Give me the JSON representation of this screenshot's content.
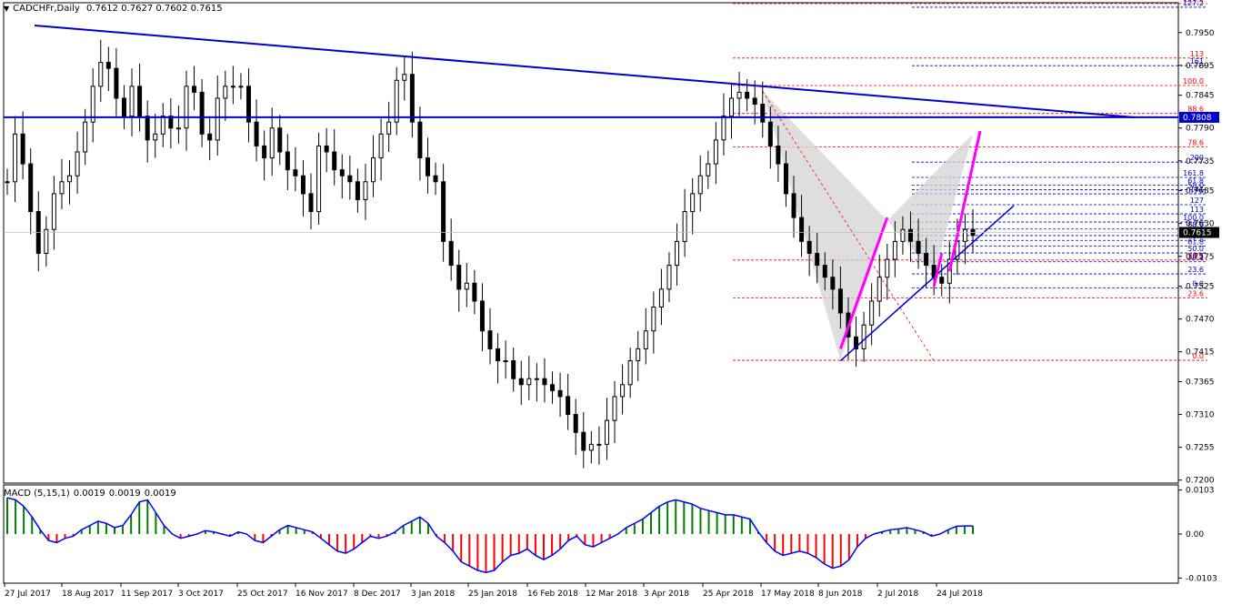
{
  "header": {
    "menu_glyph": "▼",
    "symbol": "CADCHFr,Daily",
    "open": "0.7612",
    "high": "0.7627",
    "low": "0.7602",
    "close": "0.7615"
  },
  "macd_header": {
    "label": "MACD (5,15,1)",
    "v1": "0.0019",
    "v2": "0.0019",
    "v3": "0.0019"
  },
  "colors": {
    "background": "#ffffff",
    "candle": "#000000",
    "trendline": "#0000cd",
    "pattern_line": "#ff00ff",
    "fib_red": "#ff0000",
    "fib_blue": "#0000cd",
    "macd_green": "#008000",
    "macd_red": "#ff0000",
    "macd_signal": "#0000ff",
    "current_price_tag": "#000000"
  },
  "chart_data": {
    "type": "candlestick",
    "symbol": "CADCHFr",
    "timeframe": "Daily",
    "ylim": [
      0.7195,
      0.8
    ],
    "price_ticks": [
      "0.7950",
      "0.7895",
      "0.7845",
      "0.7790",
      "0.7735",
      "0.7685",
      "0.7630",
      "0.7575",
      "0.7525",
      "0.7470",
      "0.7415",
      "0.7365",
      "0.7310",
      "0.7255",
      "0.7200"
    ],
    "x_ticks": [
      "27 Jul 2017",
      "18 Aug 2017",
      "11 Sep 2017",
      "3 Oct 2017",
      "25 Oct 2017",
      "16 Nov 2017",
      "8 Dec 2017",
      "3 Jan 2018",
      "25 Jan 2018",
      "16 Feb 2018",
      "12 Mar 2018",
      "3 Apr 2018",
      "25 Apr 2018",
      "17 May 2018",
      "8 Jun 2018",
      "2 Jul 2018",
      "24 Jul 2018"
    ],
    "current_price": "0.7615",
    "horizontal_line": "0.7808",
    "close_path": [
      0.77,
      0.778,
      0.773,
      0.765,
      0.758,
      0.762,
      0.768,
      0.77,
      0.771,
      0.775,
      0.78,
      0.786,
      0.79,
      0.789,
      0.784,
      0.781,
      0.786,
      0.781,
      0.777,
      0.778,
      0.781,
      0.779,
      0.779,
      0.786,
      0.785,
      0.778,
      0.777,
      0.784,
      0.786,
      0.786,
      0.786,
      0.78,
      0.776,
      0.774,
      0.779,
      0.775,
      0.772,
      0.771,
      0.768,
      0.765,
      0.776,
      0.775,
      0.772,
      0.771,
      0.77,
      0.767,
      0.77,
      0.774,
      0.778,
      0.78,
      0.787,
      0.788,
      0.78,
      0.774,
      0.771,
      0.77,
      0.76,
      0.756,
      0.752,
      0.753,
      0.75,
      0.745,
      0.742,
      0.74,
      0.74,
      0.737,
      0.736,
      0.737,
      0.737,
      0.736,
      0.735,
      0.734,
      0.731,
      0.728,
      0.725,
      0.726,
      0.726,
      0.73,
      0.734,
      0.736,
      0.74,
      0.742,
      0.745,
      0.749,
      0.752,
      0.756,
      0.76,
      0.765,
      0.768,
      0.771,
      0.773,
      0.777,
      0.781,
      0.784,
      0.785,
      0.784,
      0.783,
      0.78,
      0.776,
      0.773,
      0.768,
      0.764,
      0.76,
      0.758,
      0.756,
      0.754,
      0.752,
      0.748,
      0.744,
      0.742,
      0.746,
      0.75,
      0.754,
      0.757,
      0.76,
      0.762,
      0.76,
      0.758,
      0.756,
      0.754,
      0.753,
      0.757,
      0.76,
      0.762,
      0.761
    ],
    "macd_ylim": [
      -0.0115,
      0.0115
    ],
    "macd_ticks": [
      "0.0103",
      "0.00",
      "-0.0103"
    ],
    "macd_values": [
      0.0085,
      0.008,
      0.0065,
      0.004,
      0.001,
      -0.0015,
      -0.002,
      -0.001,
      -0.0005,
      0.001,
      0.002,
      0.003,
      0.0025,
      0.0015,
      0.002,
      0.0045,
      0.0075,
      0.008,
      0.005,
      0.002,
      0.0,
      -0.001,
      -0.0005,
      0.0,
      0.0008,
      0.0005,
      0.0,
      -0.0005,
      0.0005,
      0.0,
      -0.0015,
      -0.002,
      -0.0005,
      0.001,
      0.002,
      0.0015,
      0.001,
      0.0005,
      -0.001,
      -0.0025,
      -0.004,
      -0.0045,
      -0.0035,
      -0.002,
      -0.0005,
      -0.001,
      -0.0005,
      0.0005,
      0.002,
      0.003,
      0.004,
      0.0025,
      -0.0005,
      -0.002,
      -0.004,
      -0.0065,
      -0.0075,
      -0.0085,
      -0.009,
      -0.0085,
      -0.0065,
      -0.005,
      -0.0045,
      -0.0035,
      -0.005,
      -0.006,
      -0.005,
      -0.0035,
      -0.0015,
      -0.0005,
      -0.0025,
      -0.003,
      -0.002,
      -0.001,
      0.0,
      0.0015,
      0.0025,
      0.0035,
      0.005,
      0.0065,
      0.0075,
      0.008,
      0.0075,
      0.007,
      0.006,
      0.0055,
      0.005,
      0.0045,
      0.0045,
      0.004,
      0.0035,
      0.0005,
      -0.002,
      -0.004,
      -0.005,
      -0.0045,
      -0.004,
      -0.0045,
      -0.0055,
      -0.007,
      -0.008,
      -0.0075,
      -0.006,
      -0.003,
      -0.001,
      0.0,
      0.0005,
      0.001,
      0.0012,
      0.0015,
      0.001,
      0.0005,
      -0.0005,
      0.0,
      0.001,
      0.0018,
      0.0019,
      0.0019
    ]
  },
  "fib_levels_right": [
    {
      "label": "127.2",
      "color": "red",
      "price": 0.79985
    },
    {
      "label": "127.2",
      "color": "blue",
      "price": 0.79925
    },
    {
      "label": "113",
      "color": "red",
      "price": 0.79073
    },
    {
      "label": "161",
      "color": "blue",
      "price": 0.78945
    },
    {
      "label": "100.0",
      "color": "red",
      "price": 0.78613
    },
    {
      "label": "88.6",
      "color": "red",
      "price": 0.78145
    },
    {
      "label": "78.6",
      "color": "red",
      "price": 0.77585
    },
    {
      "label": "200",
      "color": "blue",
      "price": 0.77329
    },
    {
      "label": "161.8",
      "color": "blue",
      "price": 0.77073
    },
    {
      "label": "61.8",
      "color": "blue",
      "price": 0.76945
    },
    {
      "label": "50.0",
      "color": "blue",
      "price": 0.76868
    },
    {
      "label": "141",
      "color": "blue",
      "price": 0.76797
    },
    {
      "label": "127",
      "color": "blue",
      "price": 0.76615
    },
    {
      "label": "113",
      "color": "blue",
      "price": 0.76462
    },
    {
      "label": "100.0",
      "color": "blue",
      "price": 0.76325
    },
    {
      "label": "88.6",
      "color": "blue",
      "price": 0.76208
    },
    {
      "label": "78.6",
      "color": "blue",
      "price": 0.76098
    },
    {
      "label": "70.7",
      "color": "blue",
      "price": 0.76017
    },
    {
      "label": "61.8",
      "color": "blue",
      "price": 0.75924
    },
    {
      "label": "50.0",
      "color": "blue",
      "price": 0.75806
    },
    {
      "label": "38.2",
      "color": "red",
      "price": 0.75688
    },
    {
      "label": "38.2",
      "color": "blue",
      "price": 0.75659
    },
    {
      "label": "23.6",
      "color": "blue",
      "price": 0.75456
    },
    {
      "label": "0.0",
      "color": "blue",
      "price": 0.75222
    },
    {
      "label": "23.6",
      "color": "red",
      "price": 0.75055
    },
    {
      "label": "0.0",
      "color": "red",
      "price": 0.74007
    }
  ]
}
